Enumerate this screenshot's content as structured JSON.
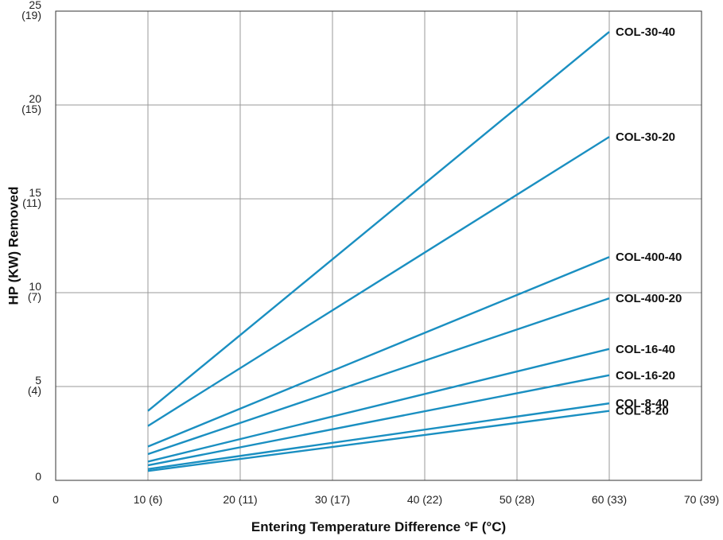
{
  "chart_data": {
    "type": "line",
    "title": "",
    "xlabel": "Entering Temperature Difference °F (°C)",
    "ylabel": "HP (KW) Removed",
    "xlim": [
      0,
      70
    ],
    "ylim": [
      0,
      25
    ],
    "grid": true,
    "line_color": "#1a8fc1",
    "x_ticks": [
      {
        "value": 0,
        "label": "0"
      },
      {
        "value": 10,
        "label": "10 (6)"
      },
      {
        "value": 20,
        "label": "20 (11)"
      },
      {
        "value": 30,
        "label": "30 (17)"
      },
      {
        "value": 40,
        "label": "40 (22)"
      },
      {
        "value": 50,
        "label": "50 (28)"
      },
      {
        "value": 60,
        "label": "60 (33)"
      },
      {
        "value": 70,
        "label": "70 (39)"
      }
    ],
    "y_ticks": [
      {
        "value": 0,
        "label": "0",
        "sub": ""
      },
      {
        "value": 5,
        "label": "5",
        "sub": "(4)"
      },
      {
        "value": 10,
        "label": "10",
        "sub": "(7)"
      },
      {
        "value": 15,
        "label": "15",
        "sub": "(11)"
      },
      {
        "value": 20,
        "label": "20",
        "sub": "(15)"
      },
      {
        "value": 25,
        "label": "25",
        "sub": "(19)"
      }
    ],
    "x": [
      10,
      60
    ],
    "series": [
      {
        "name": "COL-30-40",
        "values": [
          3.7,
          23.9
        ]
      },
      {
        "name": "COL-30-20",
        "values": [
          2.9,
          18.3
        ]
      },
      {
        "name": "COL-400-40",
        "values": [
          1.8,
          11.9
        ]
      },
      {
        "name": "COL-400-20",
        "values": [
          1.4,
          9.7
        ]
      },
      {
        "name": "COL-16-40",
        "values": [
          1.0,
          7.0
        ]
      },
      {
        "name": "COL-16-20",
        "values": [
          0.8,
          5.6
        ]
      },
      {
        "name": "COL-8-40",
        "values": [
          0.6,
          4.1
        ]
      },
      {
        "name": "COL-8-20",
        "values": [
          0.5,
          3.7
        ]
      }
    ]
  }
}
